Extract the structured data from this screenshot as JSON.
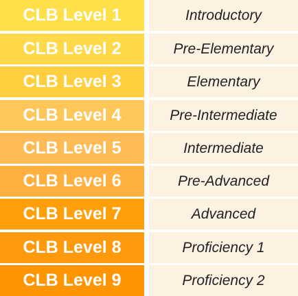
{
  "rows": [
    {
      "level": "CLB Level 1",
      "description": "Introductory",
      "color": "#ffdf4a"
    },
    {
      "level": "CLB Level 2",
      "description": "Pre-Elementary",
      "color": "#ffd94a"
    },
    {
      "level": "CLB Level 3",
      "description": "Elementary",
      "color": "#ffcf40"
    },
    {
      "level": "CLB Level 4",
      "description": "Pre-Intermediate",
      "color": "#ffc75a"
    },
    {
      "level": "CLB Level 5",
      "description": "Intermediate",
      "color": "#ffbb55"
    },
    {
      "level": "CLB Level 6",
      "description": "Pre-Advanced",
      "color": "#ffb03f"
    },
    {
      "level": "CLB Level 7",
      "description": "Advanced",
      "color": "#ff9f0a"
    },
    {
      "level": "CLB Level 8",
      "description": "Proficiency 1",
      "color": "#ff9a0c"
    },
    {
      "level": "CLB Level 9",
      "description": "Proficiency 2",
      "color": "#ff9500"
    }
  ]
}
